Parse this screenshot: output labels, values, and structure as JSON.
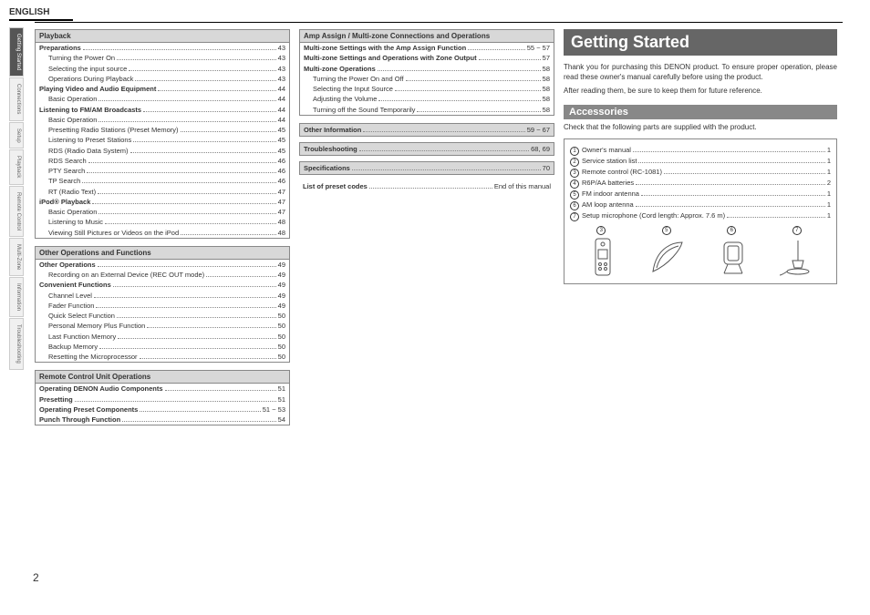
{
  "language_header": "ENGLISH",
  "page_number": "2",
  "side_tabs": [
    {
      "label": "Getting Started",
      "active": true
    },
    {
      "label": "Connections",
      "active": false
    },
    {
      "label": "Setup",
      "active": false
    },
    {
      "label": "Playback",
      "active": false
    },
    {
      "label": "Remote Control",
      "active": false
    },
    {
      "label": "Multi-Zone",
      "active": false
    },
    {
      "label": "Information",
      "active": false
    },
    {
      "label": "Troubleshooting",
      "active": false
    }
  ],
  "col1_sections": [
    {
      "header": "Playback",
      "items": [
        {
          "label": "Preparations",
          "page": "43",
          "bold": true,
          "indent": 0
        },
        {
          "label": "Turning the Power On",
          "page": "43",
          "bold": false,
          "indent": 1
        },
        {
          "label": "Selecting the input source",
          "page": "43",
          "bold": false,
          "indent": 1
        },
        {
          "label": "Operations During Playback",
          "page": "43",
          "bold": false,
          "indent": 1
        },
        {
          "label": "Playing Video and Audio Equipment",
          "page": "44",
          "bold": true,
          "indent": 0
        },
        {
          "label": "Basic Operation",
          "page": "44",
          "bold": false,
          "indent": 1
        },
        {
          "label": "Listening to FM/AM Broadcasts",
          "page": "44",
          "bold": true,
          "indent": 0
        },
        {
          "label": "Basic Operation",
          "page": "44",
          "bold": false,
          "indent": 1
        },
        {
          "label": "Presetting Radio Stations (Preset Memory)",
          "page": "45",
          "bold": false,
          "indent": 1
        },
        {
          "label": "Listening to Preset Stations",
          "page": "45",
          "bold": false,
          "indent": 1
        },
        {
          "label": "RDS (Radio Data System)",
          "page": "45",
          "bold": false,
          "indent": 1
        },
        {
          "label": "RDS Search",
          "page": "46",
          "bold": false,
          "indent": 1
        },
        {
          "label": "PTY Search",
          "page": "46",
          "bold": false,
          "indent": 1
        },
        {
          "label": "TP Search",
          "page": "46",
          "bold": false,
          "indent": 1
        },
        {
          "label": "RT (Radio Text)",
          "page": "47",
          "bold": false,
          "indent": 1
        },
        {
          "label": "iPod® Playback",
          "page": "47",
          "bold": true,
          "indent": 0
        },
        {
          "label": "Basic Operation",
          "page": "47",
          "bold": false,
          "indent": 1
        },
        {
          "label": "Listening to Music",
          "page": "48",
          "bold": false,
          "indent": 1
        },
        {
          "label": "Viewing Still Pictures or Videos on the iPod",
          "page": "48",
          "bold": false,
          "indent": 1
        }
      ]
    },
    {
      "header": "Other Operations and Functions",
      "items": [
        {
          "label": "Other Operations",
          "page": "49",
          "bold": true,
          "indent": 0
        },
        {
          "label": "Recording on an External Device (REC OUT mode)",
          "page": "49",
          "bold": false,
          "indent": 1
        },
        {
          "label": "Convenient Functions",
          "page": "49",
          "bold": true,
          "indent": 0
        },
        {
          "label": "Channel Level",
          "page": "49",
          "bold": false,
          "indent": 1
        },
        {
          "label": "Fader Function",
          "page": "49",
          "bold": false,
          "indent": 1
        },
        {
          "label": "Quick Select Function",
          "page": "50",
          "bold": false,
          "indent": 1
        },
        {
          "label": "Personal Memory Plus Function",
          "page": "50",
          "bold": false,
          "indent": 1
        },
        {
          "label": "Last Function Memory",
          "page": "50",
          "bold": false,
          "indent": 1
        },
        {
          "label": "Backup Memory",
          "page": "50",
          "bold": false,
          "indent": 1
        },
        {
          "label": "Resetting the Microprocessor",
          "page": "50",
          "bold": false,
          "indent": 1
        }
      ]
    },
    {
      "header": "Remote Control Unit Operations",
      "items": [
        {
          "label": "Operating DENON Audio Components",
          "page": "51",
          "bold": true,
          "indent": 0
        },
        {
          "label": "Presetting",
          "page": "51",
          "bold": true,
          "indent": 0
        },
        {
          "label": "Operating Preset Components",
          "page": "51 ~ 53",
          "bold": true,
          "indent": 0
        },
        {
          "label": "Punch Through Function",
          "page": "54",
          "bold": true,
          "indent": 0
        }
      ]
    }
  ],
  "col2_section": {
    "header": "Amp Assign / Multi-zone Connections and Operations",
    "items": [
      {
        "label": "Multi-zone Settings with the Amp Assign Function",
        "page": "55 ~ 57",
        "bold": true,
        "indent": 0
      },
      {
        "label": "Multi-zone Settings and Operations with Zone Output",
        "page": "57",
        "bold": true,
        "indent": 0
      },
      {
        "label": "Multi-zone Operations",
        "page": "58",
        "bold": true,
        "indent": 0
      },
      {
        "label": "Turning the Power On and Off",
        "page": "58",
        "bold": false,
        "indent": 1
      },
      {
        "label": "Selecting the Input Source",
        "page": "58",
        "bold": false,
        "indent": 1
      },
      {
        "label": "Adjusting the Volume",
        "page": "58",
        "bold": false,
        "indent": 1
      },
      {
        "label": "Turning off the Sound Temporarily",
        "page": "58",
        "bold": false,
        "indent": 1
      }
    ]
  },
  "col2_standalone": [
    {
      "label": "Other Information",
      "page": "59 ~ 67"
    },
    {
      "label": "Troubleshooting",
      "page": "68, 69"
    },
    {
      "label": "Specifications",
      "page": "70"
    }
  ],
  "col2_plain": {
    "label": "List of preset codes",
    "page": "End of this manual"
  },
  "getting_started": {
    "heading": "Getting Started",
    "para1": "Thank you for purchasing this DENON product. To ensure proper operation, please read these owner's manual carefully before using the product.",
    "para2": "After reading them, be sure to keep them for future reference."
  },
  "accessories": {
    "heading": "Accessories",
    "intro": "Check that the following parts are supplied with the product.",
    "items": [
      {
        "num": "1",
        "label": "Owner's manual",
        "qty": "1"
      },
      {
        "num": "2",
        "label": "Service station list",
        "qty": "1"
      },
      {
        "num": "3",
        "label": "Remote control (RC-1081)",
        "qty": "1"
      },
      {
        "num": "4",
        "label": "R6P/AA batteries",
        "qty": "2"
      },
      {
        "num": "5",
        "label": "FM indoor antenna",
        "qty": "1"
      },
      {
        "num": "6",
        "label": "AM loop antenna",
        "qty": "1"
      },
      {
        "num": "7",
        "label": "Setup microphone (Cord length: Approx. 7.6 m)",
        "qty": "1"
      }
    ],
    "illus_nums": [
      "3",
      "5",
      "6",
      "7"
    ]
  }
}
